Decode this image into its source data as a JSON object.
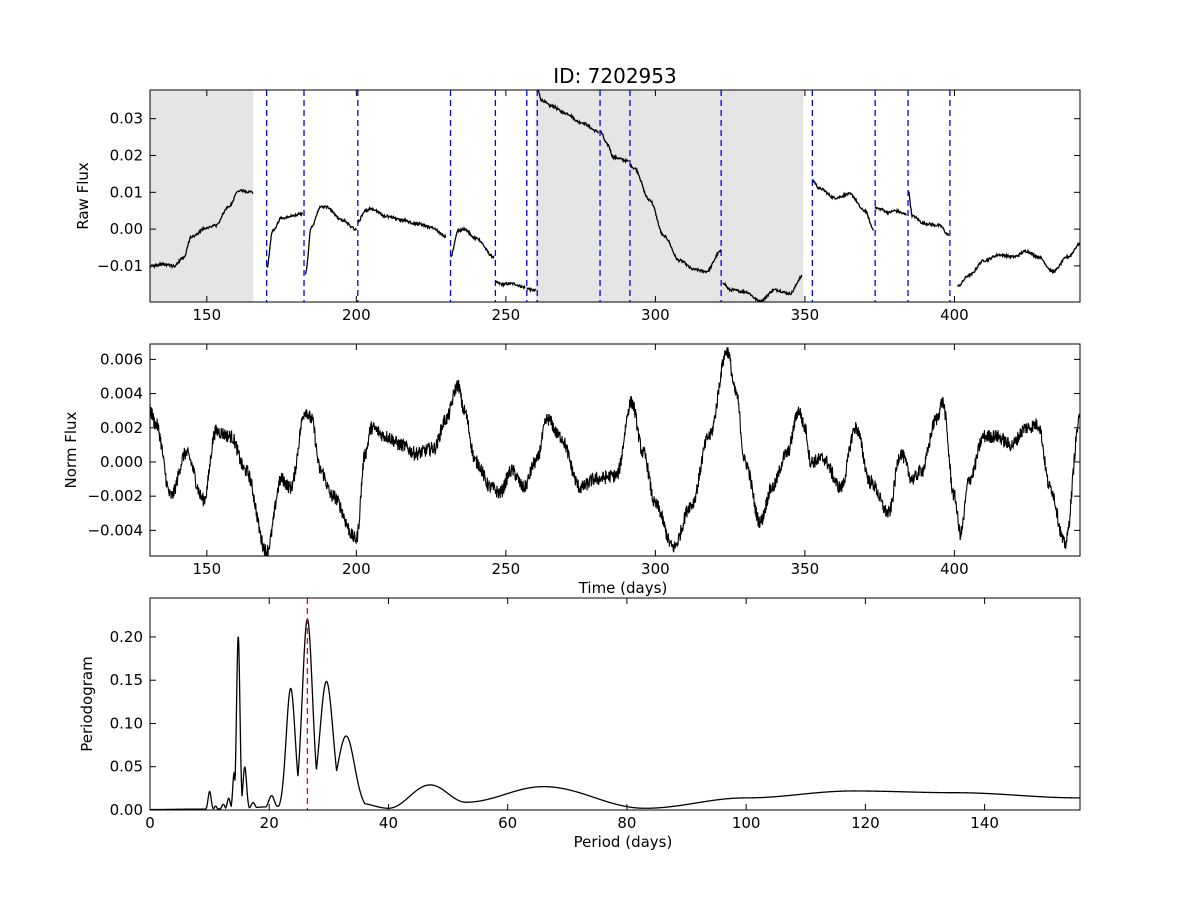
{
  "figure_title": "ID: 7202953",
  "chart_data": [
    {
      "type": "line",
      "panel": "raw",
      "title": "ID: 7202953",
      "xlabel": "",
      "ylabel": "Raw Flux",
      "xlim": [
        131,
        442
      ],
      "ylim": [
        -0.0198,
        0.0378
      ],
      "xticks": [
        150,
        200,
        250,
        300,
        350,
        400
      ],
      "yticks": [
        -0.01,
        0.0,
        0.01,
        0.02,
        0.03
      ],
      "ytick_labels": [
        "−0.01",
        "0.00",
        "0.01",
        "0.02",
        "0.03"
      ],
      "shaded_regions": [
        [
          131,
          165.5
        ],
        [
          260,
          349.5
        ]
      ],
      "shade_color": "#e5e5e5",
      "boundary_lines_x": [
        170,
        182.5,
        200.5,
        231.5,
        246.5,
        257,
        260.5,
        281.5,
        291.5,
        322,
        352.5,
        373.5,
        384.5,
        398.5
      ],
      "boundary_color": "#0000ff",
      "line_color": "#000000",
      "segments": [
        {
          "x": [
            131,
            135,
            139,
            142,
            145,
            150,
            153,
            157,
            161,
            165.5
          ],
          "y": [
            -0.0101,
            -0.0095,
            -0.01,
            -0.008,
            -0.002,
            0.0003,
            0.001,
            0.0058,
            0.0105,
            0.01
          ]
        },
        {
          "x": [
            170,
            172,
            175,
            178,
            182
          ],
          "y": [
            -0.0106,
            -0.0005,
            0.003,
            0.0035,
            0.0042
          ]
        },
        {
          "x": [
            183,
            185,
            188,
            190,
            195,
            200
          ],
          "y": [
            -0.012,
            0.0005,
            0.006,
            0.006,
            0.0025,
            0.0
          ]
        },
        {
          "x": [
            200.5,
            203,
            205,
            210,
            215,
            220,
            225,
            230
          ],
          "y": [
            0.002,
            0.005,
            0.0055,
            0.0035,
            0.0025,
            0.0015,
            0.0005,
            -0.002
          ]
        },
        {
          "x": [
            231.5,
            234,
            236,
            240,
            246
          ],
          "y": [
            -0.0075,
            -0.0005,
            0.0,
            -0.0025,
            -0.0075
          ]
        },
        {
          "x": [
            246.5,
            249,
            252,
            256.5
          ],
          "y": [
            -0.0145,
            -0.015,
            -0.0148,
            -0.0158
          ]
        },
        {
          "x": [
            257,
            258.5,
            260
          ],
          "y": [
            -0.016,
            -0.0165,
            -0.0168
          ]
        },
        {
          "x": [
            260.5,
            262,
            265,
            270,
            275,
            281
          ],
          "y": [
            0.038,
            0.035,
            0.0335,
            0.0315,
            0.029,
            0.0265
          ]
        },
        {
          "x": [
            281.5,
            284,
            286,
            291
          ],
          "y": [
            0.0265,
            0.023,
            0.0195,
            0.0185
          ]
        },
        {
          "x": [
            291.5,
            293,
            298,
            303,
            308,
            313,
            317,
            322
          ],
          "y": [
            0.0175,
            0.0165,
            0.008,
            -0.002,
            -0.0085,
            -0.011,
            -0.0115,
            -0.006
          ]
        },
        {
          "x": [
            322.5,
            325,
            330,
            335,
            340,
            345,
            349
          ],
          "y": [
            -0.0145,
            -0.0165,
            -0.017,
            -0.0195,
            -0.0165,
            -0.0175,
            -0.013
          ]
        },
        {
          "x": [
            352.5,
            355,
            360,
            365,
            370,
            373
          ],
          "y": [
            0.0132,
            0.011,
            0.0085,
            0.0095,
            0.005,
            0.0
          ]
        },
        {
          "x": [
            373.5,
            375,
            378,
            380,
            384
          ],
          "y": [
            0.0058,
            0.0055,
            0.0045,
            0.005,
            0.004
          ]
        },
        {
          "x": [
            384.5,
            386,
            390,
            395,
            398
          ],
          "y": [
            0.0105,
            0.0035,
            0.0015,
            0.001,
            -0.0015
          ]
        },
        {
          "x": [
            401,
            405,
            410,
            415,
            420,
            424,
            428,
            433,
            438,
            442
          ],
          "y": [
            -0.0155,
            -0.0125,
            -0.0085,
            -0.007,
            -0.0075,
            -0.006,
            -0.0075,
            -0.0115,
            -0.0075,
            -0.004
          ]
        }
      ]
    },
    {
      "type": "line",
      "panel": "norm",
      "xlabel": "Time (days)",
      "ylabel": "Norm Flux",
      "xlim": [
        131,
        442
      ],
      "ylim": [
        -0.0055,
        0.0069
      ],
      "xticks": [
        150,
        200,
        250,
        300,
        350,
        400
      ],
      "yticks": [
        -0.004,
        -0.002,
        0.0,
        0.002,
        0.004,
        0.006
      ],
      "ytick_labels": [
        "−0.004",
        "−0.002",
        "0.000",
        "0.002",
        "0.004",
        "0.006"
      ],
      "line_color": "#000000",
      "noise_amplitude": 0.0004,
      "x": [
        131,
        133,
        138,
        143,
        149,
        153,
        158,
        163,
        170,
        175,
        178,
        183,
        185,
        188,
        192,
        200,
        203,
        205,
        210,
        215,
        220,
        226,
        230,
        234,
        236,
        240,
        245,
        248,
        252,
        256,
        260,
        264,
        268,
        275,
        280,
        287,
        292,
        296,
        300,
        306,
        312,
        318,
        324,
        327,
        330,
        335,
        339,
        344,
        348,
        350,
        352,
        356,
        362,
        367,
        372,
        378,
        382,
        386,
        389,
        394,
        396,
        400,
        402,
        405,
        410,
        414,
        419,
        424,
        428,
        432,
        437,
        442
      ],
      "y": [
        0.003,
        0.0022,
        -0.002,
        0.0005,
        -0.0022,
        0.0018,
        0.0015,
        -0.0005,
        -0.0052,
        -0.001,
        -0.0015,
        0.003,
        0.0025,
        -0.0005,
        -0.002,
        -0.0045,
        0.0005,
        0.002,
        0.0015,
        0.001,
        0.0005,
        0.0008,
        0.0025,
        0.0045,
        0.003,
        0.0,
        -0.0015,
        -0.0018,
        -0.0005,
        -0.0015,
        0.0,
        0.0025,
        0.0015,
        -0.0015,
        -0.001,
        -0.0008,
        0.0035,
        0.0005,
        -0.0025,
        -0.005,
        -0.0025,
        0.0015,
        0.0065,
        0.004,
        0.0,
        -0.0035,
        -0.0015,
        0.0005,
        0.003,
        0.002,
        0.0,
        0.0002,
        -0.0015,
        0.002,
        -0.0012,
        -0.003,
        0.0005,
        -0.001,
        -0.0005,
        0.0025,
        0.0035,
        -0.002,
        -0.0042,
        -0.001,
        0.0015,
        0.0015,
        0.001,
        0.002,
        0.0022,
        -0.0015,
        -0.0048,
        0.0025
      ]
    },
    {
      "type": "line",
      "panel": "periodogram",
      "xlabel": "Period (days)",
      "ylabel": "Periodogram",
      "xlim": [
        0,
        156
      ],
      "ylim": [
        0,
        0.245
      ],
      "xticks": [
        0,
        20,
        40,
        60,
        80,
        100,
        120,
        140
      ],
      "yticks": [
        0.0,
        0.05,
        0.1,
        0.15,
        0.2
      ],
      "ytick_labels": [
        "0.00",
        "0.05",
        "0.10",
        "0.15",
        "0.20"
      ],
      "line_color": "#000000",
      "best_period": 26.4,
      "best_period_color": "#ff0000",
      "baseline": [
        [
          0,
          0.0005
        ],
        [
          8,
          0.001
        ],
        [
          35,
          0.008
        ],
        [
          40,
          0.002
        ],
        [
          47,
          0.029
        ],
        [
          53,
          0.009
        ],
        [
          66,
          0.027
        ],
        [
          83,
          0.002
        ],
        [
          100,
          0.014
        ],
        [
          118,
          0.022
        ],
        [
          135,
          0.02
        ],
        [
          156,
          0.014
        ]
      ],
      "peaks": [
        {
          "period": 10.0,
          "height": 0.021,
          "width": 0.25
        },
        {
          "period": 11.0,
          "height": 0.004,
          "width": 0.2
        },
        {
          "period": 12.3,
          "height": 0.006,
          "width": 0.25
        },
        {
          "period": 13.2,
          "height": 0.013,
          "width": 0.25
        },
        {
          "period": 14.1,
          "height": 0.042,
          "width": 0.22
        },
        {
          "period": 14.8,
          "height": 0.2,
          "width": 0.28
        },
        {
          "period": 15.9,
          "height": 0.049,
          "width": 0.3
        },
        {
          "period": 17.3,
          "height": 0.008,
          "width": 0.35
        },
        {
          "period": 20.4,
          "height": 0.016,
          "width": 0.5
        },
        {
          "period": 23.6,
          "height": 0.14,
          "width": 0.75
        },
        {
          "period": 26.4,
          "height": 0.22,
          "width": 0.85
        },
        {
          "period": 29.6,
          "height": 0.148,
          "width": 1.1
        },
        {
          "period": 32.9,
          "height": 0.085,
          "width": 1.4
        }
      ]
    }
  ]
}
